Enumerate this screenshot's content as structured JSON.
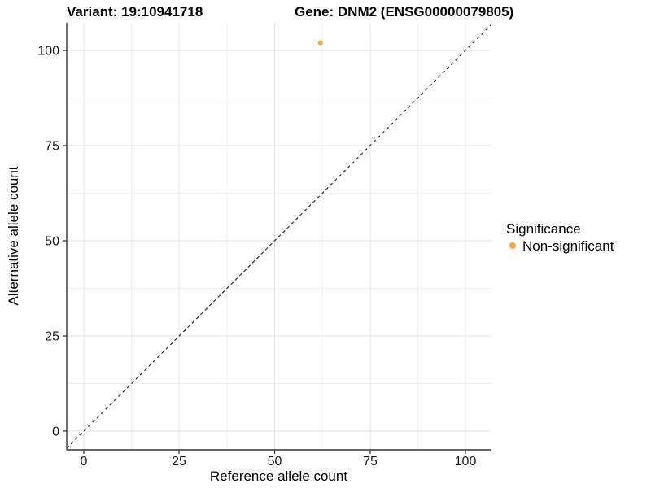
{
  "chart_data": {
    "type": "scatter",
    "titles": {
      "variant": "Variant: 19:10941718",
      "gene": "Gene: DNM2 (ENSG00000079805)"
    },
    "xlabel": "Reference allele count",
    "ylabel": "Alternative allele count",
    "x_ticks": [
      "0",
      "25",
      "50",
      "75",
      "100"
    ],
    "y_ticks": [
      "0",
      "25",
      "50",
      "75",
      "100"
    ],
    "xlim": [
      -4.5,
      106.6
    ],
    "ylim": [
      -4.9,
      107.3
    ],
    "grid": "major and minor, light gray, on white panel",
    "points": [
      {
        "x": 62,
        "y": 102,
        "series": "Non-significant"
      }
    ],
    "identity_line": {
      "style": "dashed",
      "color": "#1a1a1a",
      "from": [
        -4.5,
        -4.5
      ],
      "to": [
        106.6,
        106.6
      ]
    },
    "legend": {
      "position": "right",
      "title": "Significance",
      "items": [
        {
          "label": "Non-significant",
          "color": "#F9A242"
        }
      ]
    }
  }
}
